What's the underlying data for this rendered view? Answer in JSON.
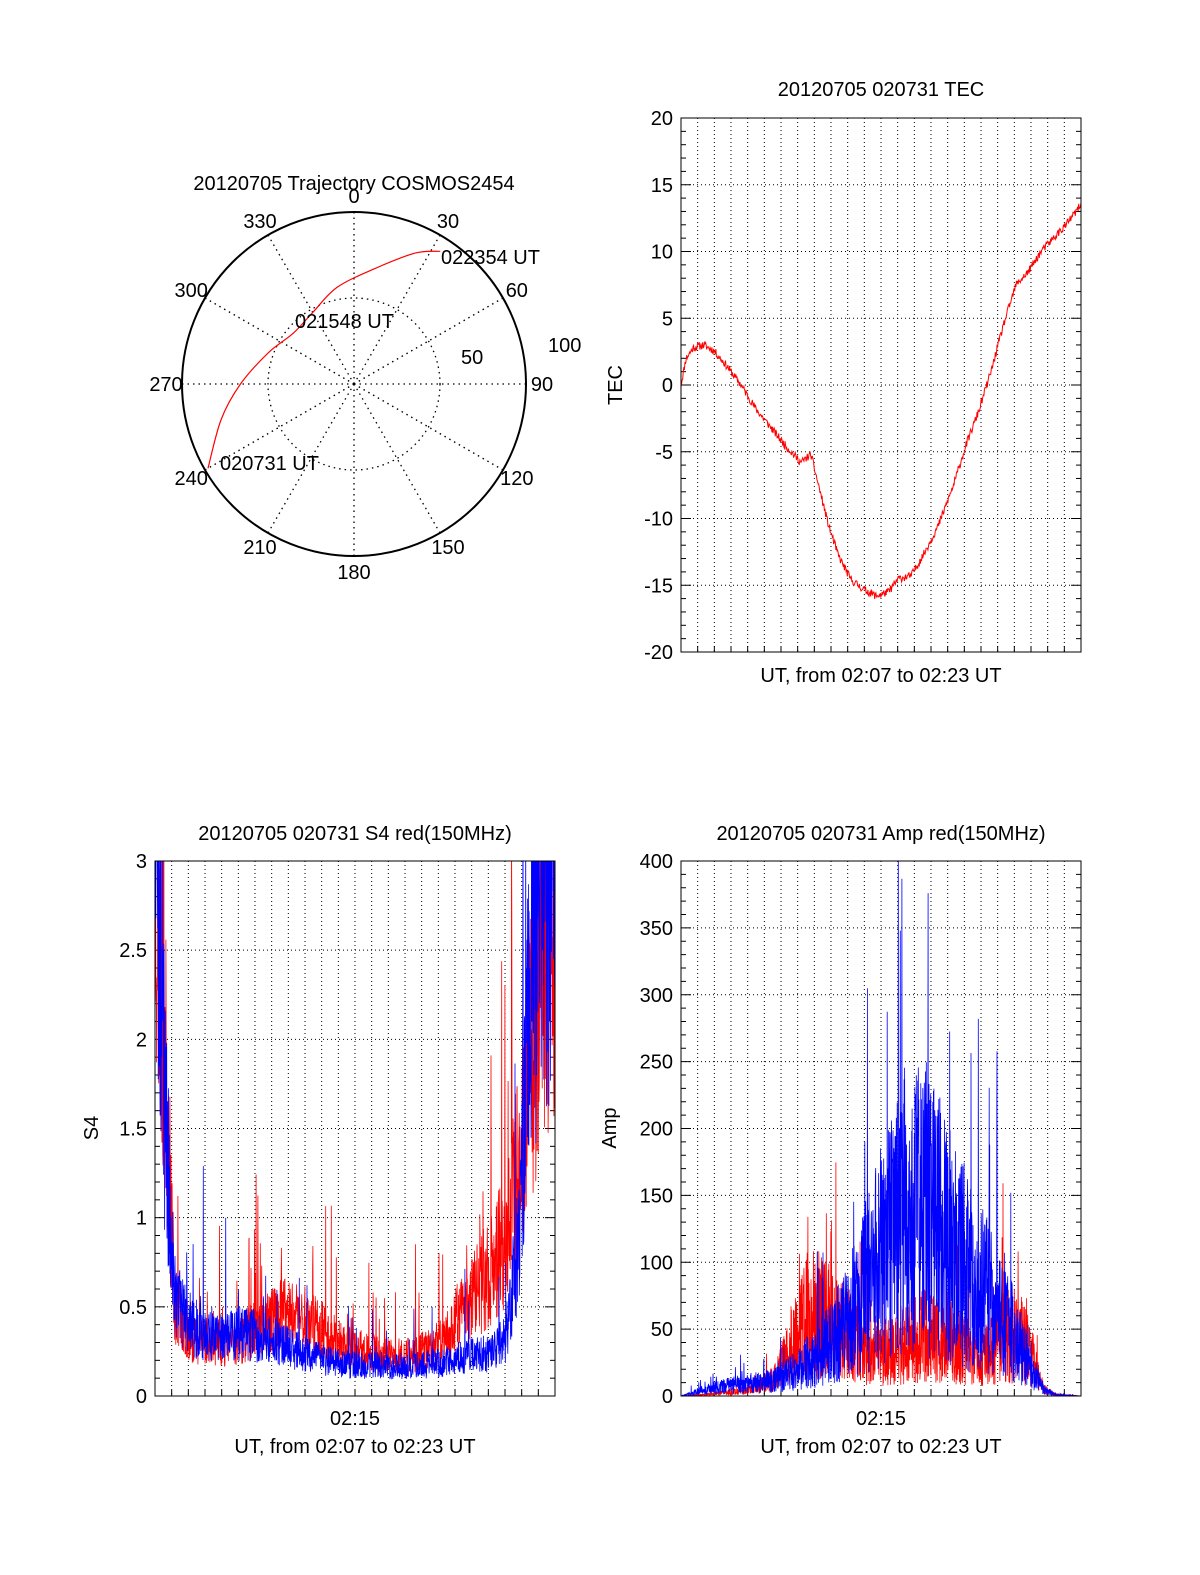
{
  "colors": {
    "red": "#ff0000",
    "blue": "#0000ff",
    "axis": "#000000",
    "grid": "#000000"
  },
  "chart_data": [
    {
      "type": "polar",
      "title": "20120705 Trajectory COSMOS2454",
      "azimuth_labels": [
        "0",
        "30",
        "60",
        "90",
        "120",
        "150",
        "180",
        "210",
        "240",
        "270",
        "300",
        "330"
      ],
      "radial_labels": [
        "50",
        "100"
      ],
      "grid": true,
      "series": [
        {
          "color": "red",
          "points": [
            {
              "az": 240,
              "r": 98
            },
            {
              "az": 255,
              "r": 80
            },
            {
              "az": 270,
              "r": 66
            },
            {
              "az": 290,
              "r": 53
            },
            {
              "az": 310,
              "r": 46
            },
            {
              "az": 330,
              "r": 48
            },
            {
              "az": 350,
              "r": 57
            },
            {
              "az": 10,
              "r": 68
            },
            {
              "az": 25,
              "r": 84
            },
            {
              "az": 33,
              "r": 92
            }
          ]
        }
      ],
      "annotations": [
        "020731 UT",
        "021548 UT",
        "022354 UT"
      ]
    },
    {
      "type": "line",
      "title": "20120705 020731 TEC",
      "xlabel": "UT, from 02:07 to 02:23 UT",
      "ylabel": "TEC",
      "xlim": [
        0,
        16
      ],
      "ylim": [
        -20,
        20
      ],
      "yticks": [
        "20",
        "15",
        "10",
        "5",
        "0",
        "-5",
        "-10",
        "-15",
        "-20"
      ],
      "grid": true,
      "series": [
        {
          "color": "red",
          "x": [
            0,
            0.2,
            0.5,
            0.9,
            1.3,
            1.8,
            2.4,
            3.0,
            3.6,
            4.2,
            4.8,
            5.2,
            5.5,
            5.9,
            6.3,
            6.8,
            7.3,
            7.8,
            8.3,
            8.7,
            9.2,
            9.7,
            10.3,
            10.9,
            11.4,
            11.9,
            12.4,
            12.9,
            13.4,
            13.9,
            14.4,
            14.9,
            15.4,
            15.8,
            16.0
          ],
          "y": [
            0,
            2.0,
            2.8,
            3.0,
            2.6,
            1.5,
            0.0,
            -1.8,
            -3.2,
            -4.6,
            -5.8,
            -5.2,
            -7.5,
            -10.5,
            -12.8,
            -14.6,
            -15.3,
            -15.8,
            -15.5,
            -14.5,
            -14.3,
            -12.7,
            -10.5,
            -7.5,
            -4.5,
            -2.0,
            1.0,
            4.5,
            7.5,
            8.5,
            10.0,
            11.0,
            12.0,
            13.0,
            13.5
          ]
        }
      ]
    },
    {
      "type": "line",
      "title": "20120705 020731 S4 red(150MHz)",
      "xlabel": "UT, from 02:07 to 02:23 UT",
      "ylabel": "S4",
      "xlim": [
        0,
        16
      ],
      "ylim": [
        0,
        3
      ],
      "xtick_label": "02:15",
      "yticks": [
        "0",
        "0.5",
        "1",
        "1.5",
        "2",
        "2.5",
        "3"
      ],
      "grid": true,
      "series": [
        {
          "color": "red",
          "x": [
            0.1,
            0.4,
            0.8,
            1.5,
            2.5,
            3.5,
            4.5,
            5.5,
            6.5,
            7.5,
            8.5,
            9.5,
            10.5,
            11.5,
            12.5,
            13.5,
            14.0,
            14.5,
            15.0,
            15.5,
            16.0
          ],
          "y": [
            3.0,
            1.9,
            0.5,
            0.33,
            0.29,
            0.32,
            0.42,
            0.48,
            0.39,
            0.28,
            0.25,
            0.22,
            0.24,
            0.3,
            0.52,
            0.72,
            0.88,
            1.25,
            1.9,
            2.5,
            2.8
          ]
        },
        {
          "color": "blue",
          "x": [
            0.1,
            0.4,
            0.8,
            1.5,
            2.5,
            3.5,
            4.5,
            5.5,
            6.5,
            7.5,
            8.5,
            9.5,
            10.5,
            11.5,
            12.5,
            13.5,
            14.0,
            14.5,
            15.0,
            15.5,
            16.0
          ],
          "y": [
            3.0,
            1.6,
            0.55,
            0.38,
            0.34,
            0.35,
            0.33,
            0.26,
            0.21,
            0.18,
            0.17,
            0.17,
            0.17,
            0.19,
            0.22,
            0.24,
            0.32,
            0.8,
            2.2,
            2.9,
            3.0
          ]
        }
      ]
    },
    {
      "type": "line",
      "title": "20120705 020731 Amp red(150MHz)",
      "xlabel": "UT, from 02:07 to 02:23 UT",
      "ylabel": "Amp",
      "xlim": [
        0,
        16
      ],
      "ylim": [
        0,
        400
      ],
      "xtick_label": "02:15",
      "yticks": [
        "0",
        "50",
        "100",
        "150",
        "200",
        "250",
        "300",
        "350",
        "400"
      ],
      "grid": true,
      "series": [
        {
          "color": "red",
          "x": [
            0,
            1,
            2,
            3,
            3.8,
            4.5,
            5.2,
            6.0,
            6.8,
            7.5,
            8.3,
            9.0,
            9.8,
            10.5,
            11.3,
            12.0,
            12.8,
            13.5,
            14.0,
            14.5,
            15.0,
            16.0
          ],
          "y": [
            0,
            1,
            3,
            6,
            14,
            40,
            65,
            55,
            45,
            30,
            35,
            40,
            45,
            40,
            35,
            25,
            45,
            45,
            30,
            5,
            1,
            0
          ]
        },
        {
          "color": "blue",
          "x": [
            0,
            1,
            2,
            3,
            3.8,
            4.5,
            5.2,
            6.0,
            6.8,
            7.5,
            8.3,
            9.0,
            9.8,
            10.5,
            11.3,
            12.0,
            12.8,
            13.5,
            14.0,
            14.5,
            15.0,
            16.0
          ],
          "y": [
            0,
            5,
            8,
            10,
            12,
            18,
            28,
            40,
            60,
            85,
            115,
            135,
            140,
            120,
            95,
            80,
            60,
            40,
            20,
            5,
            1,
            0
          ]
        }
      ]
    }
  ]
}
